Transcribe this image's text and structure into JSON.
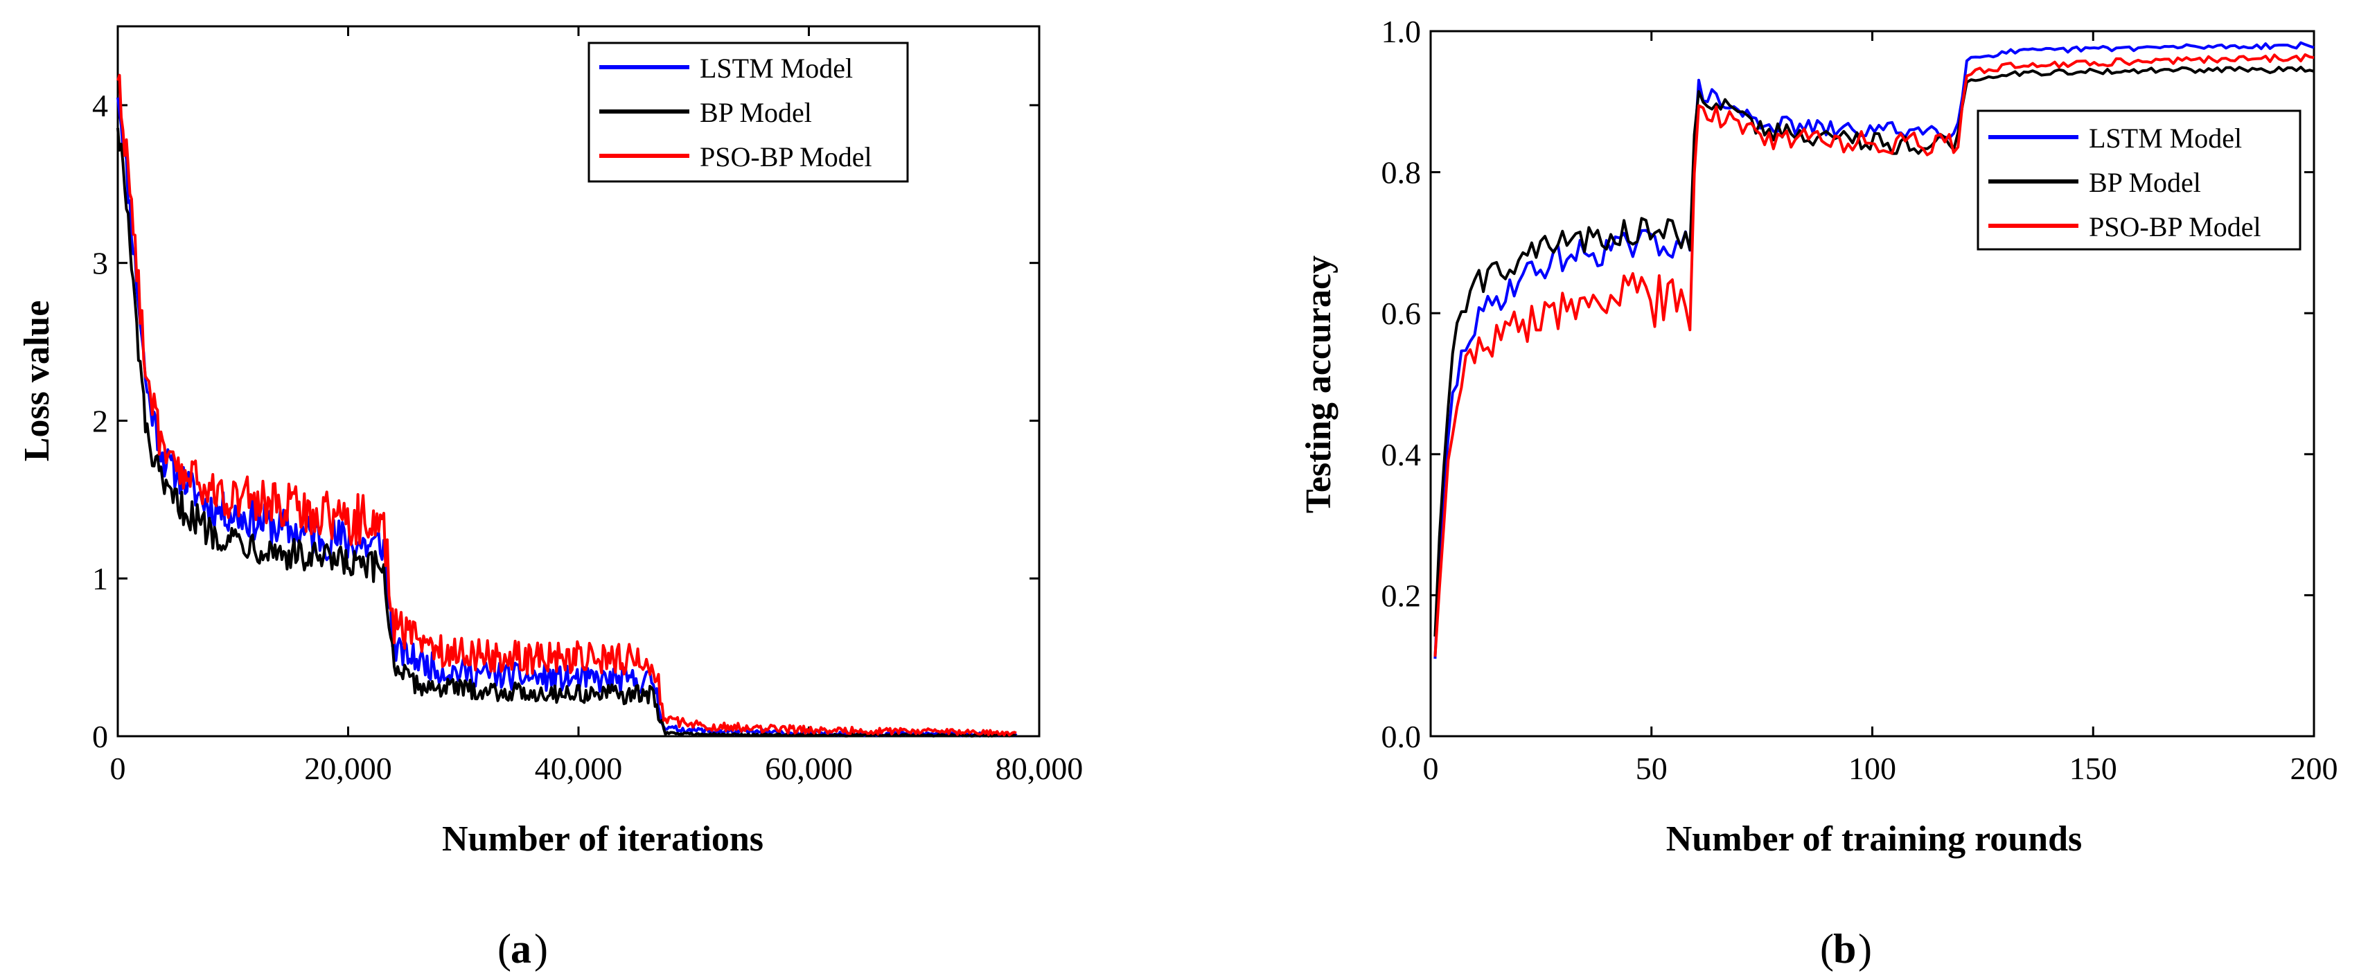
{
  "chart_data": [
    {
      "id": "a",
      "type": "line",
      "caption_letter": "a",
      "xlabel": "Number of iterations",
      "ylabel": "Loss value",
      "xlim": [
        0,
        80000
      ],
      "ylim": [
        0,
        4.5
      ],
      "xticks": [
        0,
        20000,
        40000,
        60000,
        80000
      ],
      "xtick_labels": [
        "0",
        "20,000",
        "40,000",
        "60,000",
        "80,000"
      ],
      "yticks": [
        0,
        1,
        2,
        3,
        4
      ],
      "ytick_labels": [
        "0",
        "1",
        "2",
        "3",
        "4"
      ],
      "legend_position": "top-right",
      "series": [
        {
          "name": "LSTM Model",
          "color": "#0000ff",
          "profile": [
            [
              0,
              4.1
            ],
            [
              600,
              3.7
            ],
            [
              1500,
              3.0
            ],
            [
              2500,
              2.2
            ],
            [
              4000,
              1.75
            ],
            [
              8000,
              1.45
            ],
            [
              15000,
              1.3
            ],
            [
              22500,
              1.2
            ],
            [
              23000,
              1.25
            ],
            [
              24000,
              0.55
            ],
            [
              28000,
              0.42
            ],
            [
              34000,
              0.38
            ],
            [
              40000,
              0.36
            ],
            [
              46500,
              0.35
            ],
            [
              47500,
              0.05
            ],
            [
              52000,
              0.03
            ],
            [
              60000,
              0.02
            ],
            [
              70000,
              0.015
            ],
            [
              78000,
              0.01
            ]
          ],
          "noise": [
            [
              0,
              0.1
            ],
            [
              23000,
              0.15
            ],
            [
              24000,
              0.09
            ],
            [
              47000,
              0.08
            ],
            [
              47500,
              0.02
            ],
            [
              78000,
              0.01
            ]
          ]
        },
        {
          "name": "BP Model",
          "color": "#000000",
          "profile": [
            [
              0,
              3.9
            ],
            [
              600,
              3.5
            ],
            [
              1500,
              2.7
            ],
            [
              2500,
              1.9
            ],
            [
              4000,
              1.55
            ],
            [
              8000,
              1.3
            ],
            [
              15000,
              1.15
            ],
            [
              22500,
              1.05
            ],
            [
              23000,
              1.1
            ],
            [
              24000,
              0.45
            ],
            [
              26000,
              0.32
            ],
            [
              34000,
              0.28
            ],
            [
              40000,
              0.27
            ],
            [
              46500,
              0.26
            ],
            [
              47500,
              0.02
            ],
            [
              52000,
              0.01
            ],
            [
              60000,
              0.008
            ],
            [
              78000,
              0.005
            ]
          ],
          "noise": [
            [
              0,
              0.1
            ],
            [
              23000,
              0.12
            ],
            [
              24000,
              0.06
            ],
            [
              47000,
              0.06
            ],
            [
              47500,
              0.008
            ],
            [
              78000,
              0.005
            ]
          ]
        },
        {
          "name": "PSO-BP Model",
          "color": "#ff0000",
          "profile": [
            [
              0,
              4.2
            ],
            [
              600,
              3.8
            ],
            [
              1500,
              3.1
            ],
            [
              2500,
              2.3
            ],
            [
              4000,
              1.75
            ],
            [
              8000,
              1.55
            ],
            [
              15000,
              1.45
            ],
            [
              22500,
              1.35
            ],
            [
              23000,
              1.4
            ],
            [
              24000,
              0.7
            ],
            [
              28000,
              0.55
            ],
            [
              34000,
              0.5
            ],
            [
              40000,
              0.5
            ],
            [
              46500,
              0.48
            ],
            [
              47500,
              0.1
            ],
            [
              52000,
              0.06
            ],
            [
              60000,
              0.04
            ],
            [
              70000,
              0.03
            ],
            [
              78000,
              0.02
            ]
          ],
          "noise": [
            [
              0,
              0.12
            ],
            [
              23000,
              0.18
            ],
            [
              24000,
              0.11
            ],
            [
              47000,
              0.1
            ],
            [
              47500,
              0.03
            ],
            [
              78000,
              0.015
            ]
          ]
        }
      ]
    },
    {
      "id": "b",
      "type": "line",
      "caption_letter": "b",
      "xlabel": "Number of training rounds",
      "ylabel": "Testing accuracy",
      "xlim": [
        0,
        200
      ],
      "ylim": [
        0,
        1.0
      ],
      "xticks": [
        0,
        50,
        100,
        150,
        200
      ],
      "xtick_labels": [
        "0",
        "50",
        "100",
        "150",
        "200"
      ],
      "yticks": [
        0,
        0.2,
        0.4,
        0.6,
        0.8,
        1.0
      ],
      "ytick_labels": [
        "0.0",
        "0.2",
        "0.4",
        "0.6",
        "0.8",
        "1.0"
      ],
      "legend_position": "right",
      "series": [
        {
          "name": "LSTM Model",
          "color": "#0000ff",
          "profile": [
            [
              1,
              0.12
            ],
            [
              3,
              0.35
            ],
            [
              5,
              0.48
            ],
            [
              8,
              0.56
            ],
            [
              12,
              0.6
            ],
            [
              20,
              0.65
            ],
            [
              30,
              0.68
            ],
            [
              40,
              0.69
            ],
            [
              50,
              0.7
            ],
            [
              58,
              0.7
            ],
            [
              59,
              0.66
            ],
            [
              60,
              0.92
            ],
            [
              65,
              0.9
            ],
            [
              75,
              0.87
            ],
            [
              90,
              0.86
            ],
            [
              105,
              0.86
            ],
            [
              119,
              0.86
            ],
            [
              120,
              0.88
            ],
            [
              121,
              0.96
            ],
            [
              130,
              0.97
            ],
            [
              150,
              0.975
            ],
            [
              175,
              0.978
            ],
            [
              200,
              0.98
            ]
          ],
          "noise": [
            [
              1,
              0.02
            ],
            [
              60,
              0.022
            ],
            [
              61,
              0.013
            ],
            [
              119,
              0.012
            ],
            [
              121,
              0.004
            ],
            [
              200,
              0.004
            ]
          ]
        },
        {
          "name": "BP Model",
          "color": "#000000",
          "profile": [
            [
              1,
              0.15
            ],
            [
              3,
              0.4
            ],
            [
              5,
              0.55
            ],
            [
              8,
              0.62
            ],
            [
              12,
              0.65
            ],
            [
              20,
              0.68
            ],
            [
              30,
              0.7
            ],
            [
              40,
              0.71
            ],
            [
              50,
              0.72
            ],
            [
              58,
              0.71
            ],
            [
              59,
              0.68
            ],
            [
              60,
              0.91
            ],
            [
              65,
              0.9
            ],
            [
              75,
              0.86
            ],
            [
              90,
              0.85
            ],
            [
              105,
              0.84
            ],
            [
              119,
              0.84
            ],
            [
              120,
              0.86
            ],
            [
              121,
              0.93
            ],
            [
              130,
              0.94
            ],
            [
              150,
              0.943
            ],
            [
              175,
              0.945
            ],
            [
              200,
              0.945
            ]
          ],
          "noise": [
            [
              1,
              0.02
            ],
            [
              60,
              0.02
            ],
            [
              61,
              0.014
            ],
            [
              119,
              0.014
            ],
            [
              121,
              0.004
            ],
            [
              200,
              0.004
            ]
          ]
        },
        {
          "name": "PSO-BP Model",
          "color": "#ff0000",
          "profile": [
            [
              1,
              0.12
            ],
            [
              3,
              0.3
            ],
            [
              5,
              0.45
            ],
            [
              8,
              0.52
            ],
            [
              12,
              0.55
            ],
            [
              20,
              0.58
            ],
            [
              30,
              0.61
            ],
            [
              40,
              0.62
            ],
            [
              50,
              0.62
            ],
            [
              58,
              0.62
            ],
            [
              59,
              0.6
            ],
            [
              60,
              0.9
            ],
            [
              65,
              0.88
            ],
            [
              75,
              0.85
            ],
            [
              90,
              0.845
            ],
            [
              105,
              0.84
            ],
            [
              119,
              0.84
            ],
            [
              120,
              0.86
            ],
            [
              121,
              0.94
            ],
            [
              130,
              0.95
            ],
            [
              150,
              0.955
            ],
            [
              175,
              0.96
            ],
            [
              200,
              0.963
            ]
          ],
          "noise": [
            [
              1,
              0.02
            ],
            [
              60,
              0.045
            ],
            [
              61,
              0.016
            ],
            [
              119,
              0.016
            ],
            [
              121,
              0.005
            ],
            [
              200,
              0.005
            ]
          ]
        }
      ]
    }
  ]
}
